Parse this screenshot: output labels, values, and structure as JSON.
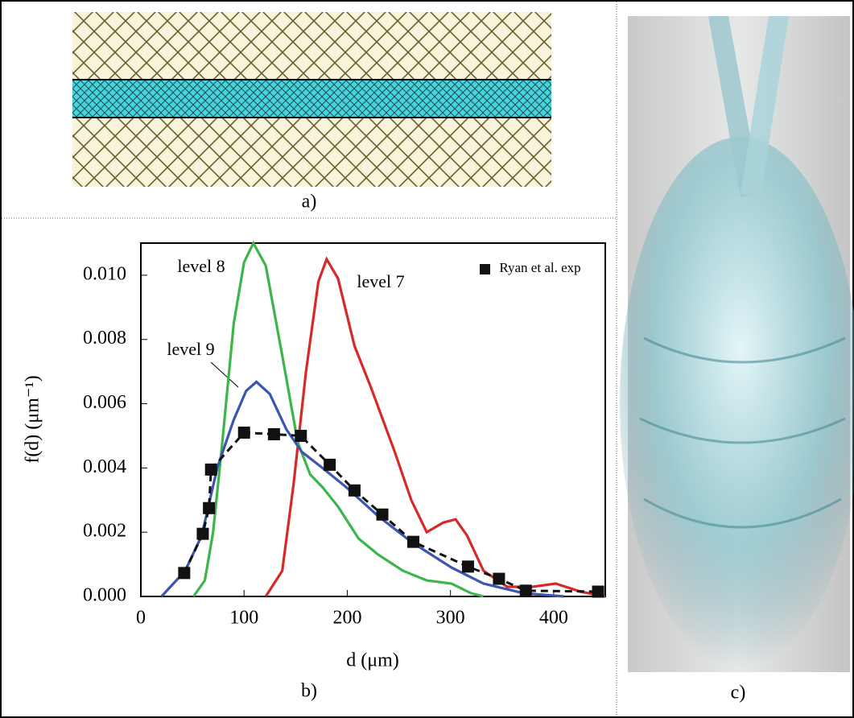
{
  "panel_labels": [
    "a)",
    "b)",
    "c)"
  ],
  "chart_data": {
    "type": "line",
    "xlabel": "d (μm)",
    "ylabel": "f(d) (μm⁻¹)",
    "xlim": [
      0,
      450
    ],
    "ylim": [
      0,
      0.011
    ],
    "xticks": [
      0,
      100,
      200,
      300,
      400
    ],
    "yticks": [
      {
        "value": 0,
        "label": "0.000"
      },
      {
        "value": 0.002,
        "label": "0.002"
      },
      {
        "value": 0.004,
        "label": "0.004"
      },
      {
        "value": 0.006,
        "label": "0.006"
      },
      {
        "value": 0.008,
        "label": "0.008"
      },
      {
        "value": 0.01,
        "label": "0.010"
      }
    ],
    "legend": "top right",
    "series": [
      {
        "name": "level 7",
        "color": "#d62a2a",
        "style": "line",
        "x": [
          121,
          137,
          148,
          160,
          172,
          180,
          191,
          207,
          223,
          246,
          262,
          277,
          293,
          305,
          316,
          332,
          355,
          379,
          402,
          426,
          450
        ],
        "values": [
          0,
          0.0008,
          0.0035,
          0.007,
          0.0098,
          0.0105,
          0.0099,
          0.0078,
          0.0065,
          0.0045,
          0.003,
          0.002,
          0.0023,
          0.0024,
          0.0019,
          0.0008,
          0.0003,
          0.0003,
          0.0004,
          0.00015,
          0
        ]
      },
      {
        "name": "level 8",
        "color": "#3cb54a",
        "style": "line",
        "x": [
          51,
          62,
          70,
          78,
          90,
          100,
          109,
          121,
          137,
          152,
          164,
          176,
          191,
          211,
          230,
          254,
          277,
          301,
          320,
          332
        ],
        "values": [
          0,
          0.0005,
          0.002,
          0.0045,
          0.0085,
          0.0104,
          0.011,
          0.0103,
          0.0075,
          0.0048,
          0.0038,
          0.0034,
          0.0028,
          0.0018,
          0.0013,
          0.0008,
          0.0005,
          0.0004,
          0.0001,
          0
        ]
      },
      {
        "name": "level 9",
        "color": "#3a56b0",
        "style": "line",
        "x": [
          20,
          43,
          59,
          74,
          90,
          102,
          112,
          125,
          141,
          156,
          176,
          199,
          230,
          262,
          301,
          332,
          371,
          410
        ],
        "values": [
          0,
          0.0008,
          0.0019,
          0.004,
          0.0055,
          0.0064,
          0.00668,
          0.0063,
          0.0052,
          0.0045,
          0.004,
          0.0034,
          0.0025,
          0.0017,
          0.0009,
          0.0004,
          0.0001,
          0
        ]
      },
      {
        "name": "Ryan et al. exp",
        "color": "#111111",
        "style": "dashed-markers",
        "x": [
          42,
          60,
          66,
          68,
          100,
          129,
          155,
          183,
          207,
          234,
          264,
          317,
          347,
          373,
          443
        ],
        "values": [
          0.00073,
          0.00195,
          0.00275,
          0.00395,
          0.0051,
          0.00505,
          0.005,
          0.0041,
          0.0033,
          0.00255,
          0.0017,
          0.00093,
          0.00055,
          0.00018,
          0.00015
        ]
      }
    ]
  }
}
